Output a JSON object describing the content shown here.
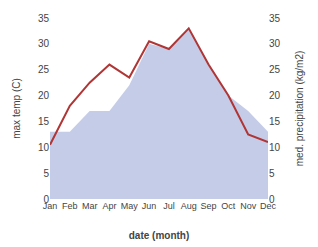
{
  "chart_data": {
    "type": "line",
    "categories": [
      "Jan",
      "Feb",
      "Mar",
      "Apr",
      "May",
      "Jun",
      "Jul",
      "Aug",
      "Sep",
      "Oct",
      "Nov",
      "Dec"
    ],
    "series": [
      {
        "type": "area",
        "color": "#c5cce8",
        "axis": "y2",
        "values": [
          13,
          13,
          17,
          17,
          22,
          30,
          29,
          33,
          26,
          20,
          17,
          13
        ]
      },
      {
        "type": "line",
        "color": "#b03535",
        "values": [
          10.5,
          18.0,
          22.5,
          26.0,
          23.5,
          30.5,
          29.0,
          33.0,
          26.0,
          20.0,
          12.5,
          11.0
        ]
      }
    ],
    "xlabel": "date (month)",
    "ylabel": "max temp (C)",
    "y2label": "med. precipitation (kg/m2)",
    "ylim": [
      0,
      35
    ],
    "yticks": [
      0,
      5,
      10,
      15,
      20,
      25,
      30,
      35
    ],
    "y2lim": [
      0,
      35
    ],
    "y2ticks": [
      0,
      5,
      10,
      15,
      20,
      25,
      30,
      35
    ],
    "grid": false
  }
}
